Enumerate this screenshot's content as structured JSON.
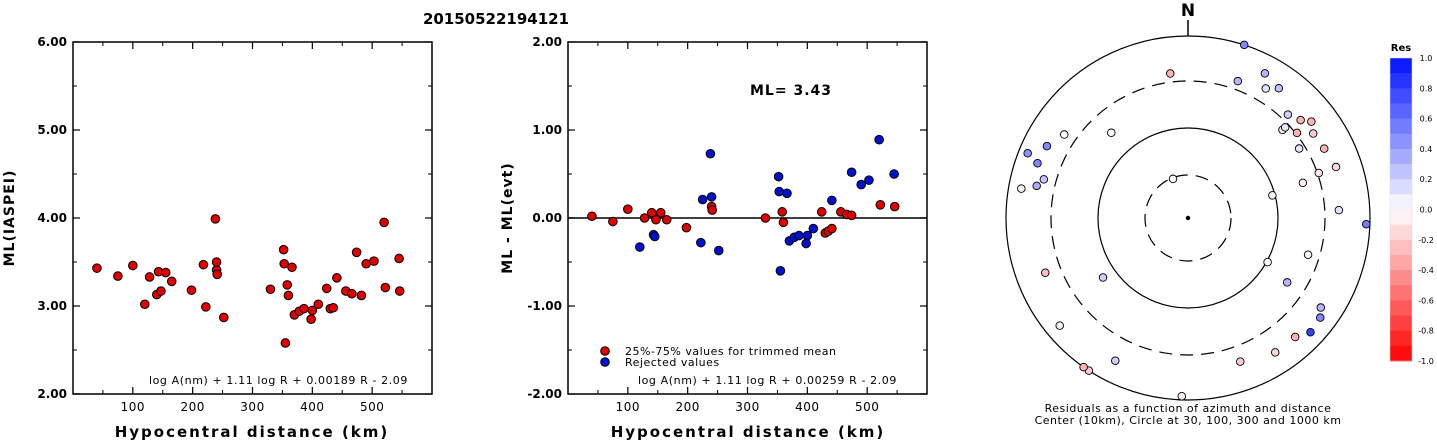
{
  "page_title": "20150522194121",
  "chart_data": [
    {
      "type": "scatter",
      "id": "ml-vs-distance",
      "xlabel": "Hypocentral distance (km)",
      "ylabel": "ML(IASPEI)",
      "xlim": [
        0,
        600
      ],
      "ylim": [
        2.0,
        6.0
      ],
      "xticks": [
        "100",
        "200",
        "300",
        "400",
        "500"
      ],
      "xtick_values": [
        100,
        200,
        300,
        400,
        500
      ],
      "yticks": [
        "2.00",
        "3.00",
        "4.00",
        "5.00",
        "6.00"
      ],
      "ytick_values": [
        2.0,
        3.0,
        4.0,
        5.0,
        6.0
      ],
      "formula": "log A(nm) + 1.11 log R + 0.00189 R - 2.09",
      "marker_color": "#e00000",
      "points": [
        [
          40,
          3.43
        ],
        [
          75,
          3.34
        ],
        [
          100,
          3.46
        ],
        [
          120,
          3.02
        ],
        [
          128,
          3.33
        ],
        [
          140,
          3.13
        ],
        [
          143,
          3.39
        ],
        [
          147,
          3.17
        ],
        [
          155,
          3.38
        ],
        [
          165,
          3.28
        ],
        [
          198,
          3.18
        ],
        [
          218,
          3.47
        ],
        [
          222,
          2.99
        ],
        [
          238,
          3.99
        ],
        [
          240,
          3.41
        ],
        [
          240,
          3.5
        ],
        [
          241,
          3.36
        ],
        [
          252,
          2.87
        ],
        [
          330,
          3.19
        ],
        [
          352,
          3.64
        ],
        [
          353,
          3.48
        ],
        [
          355,
          2.58
        ],
        [
          358,
          3.24
        ],
        [
          360,
          3.12
        ],
        [
          366,
          3.44
        ],
        [
          370,
          2.9
        ],
        [
          378,
          2.94
        ],
        [
          386,
          2.97
        ],
        [
          398,
          2.85
        ],
        [
          400,
          2.95
        ],
        [
          410,
          3.02
        ],
        [
          424,
          3.2
        ],
        [
          430,
          2.97
        ],
        [
          435,
          2.98
        ],
        [
          441,
          3.32
        ],
        [
          456,
          3.17
        ],
        [
          466,
          3.14
        ],
        [
          474,
          3.61
        ],
        [
          482,
          3.12
        ],
        [
          490,
          3.48
        ],
        [
          503,
          3.51
        ],
        [
          520,
          3.95
        ],
        [
          522,
          3.21
        ],
        [
          545,
          3.54
        ],
        [
          546,
          3.17
        ]
      ]
    },
    {
      "type": "scatter",
      "id": "residual-vs-distance",
      "xlabel": "Hypocentral distance (km)",
      "ylabel": "ML - ML(evt)",
      "xlim": [
        0,
        600
      ],
      "ylim": [
        -2.0,
        2.0
      ],
      "xticks": [
        "100",
        "200",
        "300",
        "400",
        "500"
      ],
      "xtick_values": [
        100,
        200,
        300,
        400,
        500
      ],
      "yticks": [
        "-2.00",
        "-1.00",
        "0.00",
        "1.00",
        "2.00"
      ],
      "ytick_values": [
        -2.0,
        -1.0,
        0.0,
        1.0,
        2.0
      ],
      "annotation": "ML= 3.43",
      "formula": "log A(nm) + 1.11 log R + 0.00259 R - 2.09",
      "legend": [
        {
          "label": "25%-75% values for trimmed mean",
          "color": "#e00000"
        },
        {
          "label": "Rejected values",
          "color": "#0010d0"
        }
      ],
      "series": [
        {
          "legend_index": 0,
          "color": "#e00000",
          "points": [
            [
              40,
              0.02
            ],
            [
              75,
              -0.04
            ],
            [
              100,
              0.1
            ],
            [
              128,
              0.0
            ],
            [
              140,
              0.06
            ],
            [
              147,
              -0.02
            ],
            [
              155,
              0.06
            ],
            [
              165,
              -0.02
            ],
            [
              198,
              -0.11
            ],
            [
              240,
              0.13
            ],
            [
              241,
              0.09
            ],
            [
              330,
              0.0
            ],
            [
              358,
              0.07
            ],
            [
              360,
              -0.05
            ],
            [
              424,
              0.07
            ],
            [
              430,
              -0.17
            ],
            [
              435,
              -0.15
            ],
            [
              441,
              -0.12
            ],
            [
              456,
              0.07
            ],
            [
              466,
              0.04
            ],
            [
              474,
              0.03
            ],
            [
              522,
              0.15
            ],
            [
              546,
              0.13
            ]
          ]
        },
        {
          "legend_index": 1,
          "color": "#0010d0",
          "points": [
            [
              120,
              -0.33
            ],
            [
              143,
              -0.19
            ],
            [
              145,
              -0.21
            ],
            [
              222,
              -0.28
            ],
            [
              225,
              0.21
            ],
            [
              238,
              0.73
            ],
            [
              240,
              0.24
            ],
            [
              252,
              -0.37
            ],
            [
              352,
              0.47
            ],
            [
              353,
              0.3
            ],
            [
              355,
              -0.6
            ],
            [
              366,
              0.28
            ],
            [
              370,
              -0.26
            ],
            [
              378,
              -0.22
            ],
            [
              386,
              -0.2
            ],
            [
              398,
              -0.29
            ],
            [
              400,
              -0.2
            ],
            [
              410,
              -0.12
            ],
            [
              441,
              0.2
            ],
            [
              474,
              0.52
            ],
            [
              490,
              0.38
            ],
            [
              503,
              0.43
            ],
            [
              520,
              0.89
            ],
            [
              545,
              0.5
            ]
          ]
        }
      ]
    },
    {
      "type": "scatter",
      "id": "azimuth-residual-map",
      "north_label": "N",
      "caption_line1": "Residuals as a function of azimuth and distance",
      "caption_line2": "Center (10km), Circle at 30, 100, 300 and 1000 km",
      "rings_km": [
        10,
        30,
        100,
        300,
        1000
      ],
      "ring_styles": [
        "center",
        "dashed",
        "solid",
        "dashed",
        "solid"
      ],
      "colorbar_title": "Res",
      "colorbar_range": [
        -1.0,
        1.0
      ],
      "colorbar_ticks": [
        "1.0",
        "0.8",
        "0.6",
        "0.4",
        "0.2",
        "0.0",
        "-0.2",
        "-0.4",
        "-0.6",
        "-0.8",
        "-1.0"
      ],
      "colorbar_tick_values": [
        1.0,
        0.8,
        0.6,
        0.4,
        0.2,
        0.0,
        -0.2,
        -0.4,
        -0.6,
        -0.8,
        -1.0
      ],
      "positive_color": "#0010ff",
      "negative_color": "#ff0000",
      "stations": [
        {
          "az": 18,
          "dist": 1.0,
          "res": 0.5
        },
        {
          "az": 20,
          "dist": 0.8,
          "res": 0.3
        },
        {
          "az": 28,
          "dist": 0.9,
          "res": 0.3
        },
        {
          "az": 31,
          "dist": 0.83,
          "res": 0.12
        },
        {
          "az": 35,
          "dist": 0.87,
          "res": 0.25
        },
        {
          "az": 44,
          "dist": 0.79,
          "res": 0.2
        },
        {
          "az": 47,
          "dist": 0.71,
          "res": -0.05
        },
        {
          "az": 47,
          "dist": 0.73,
          "res": 0.1
        },
        {
          "az": 49,
          "dist": 0.82,
          "res": -0.3
        },
        {
          "az": 52,
          "dist": 0.76,
          "res": -0.3
        },
        {
          "az": 52,
          "dist": 0.86,
          "res": -0.3
        },
        {
          "az": 58,
          "dist": 0.72,
          "res": 0.1
        },
        {
          "az": 56,
          "dist": 0.83,
          "res": -0.2
        },
        {
          "az": 63,
          "dist": 0.84,
          "res": -0.3
        },
        {
          "az": 71,
          "dist": 0.76,
          "res": -0.1
        },
        {
          "az": 71,
          "dist": 0.86,
          "res": -0.15
        },
        {
          "az": 73,
          "dist": 0.66,
          "res": -0.08
        },
        {
          "az": 75,
          "dist": 0.48,
          "res": -0.04
        },
        {
          "az": 87,
          "dist": 0.83,
          "res": 0.12
        },
        {
          "az": 92,
          "dist": 0.98,
          "res": 0.55
        },
        {
          "az": 107,
          "dist": 0.69,
          "res": -0.05
        },
        {
          "az": 119,
          "dist": 0.5,
          "res": 0.0
        },
        {
          "az": 123,
          "dist": 0.65,
          "res": 0.3
        },
        {
          "az": 124,
          "dist": 0.88,
          "res": 0.3
        },
        {
          "az": 127,
          "dist": 0.91,
          "res": 0.5
        },
        {
          "az": 133,
          "dist": 0.92,
          "res": 0.8
        },
        {
          "az": 138,
          "dist": 0.88,
          "res": -0.3
        },
        {
          "az": 147,
          "dist": 0.88,
          "res": -0.15
        },
        {
          "az": 160,
          "dist": 0.84,
          "res": -0.2
        },
        {
          "az": 182,
          "dist": 0.98,
          "res": -0.05
        },
        {
          "az": 207,
          "dist": 0.88,
          "res": 0.2
        },
        {
          "az": 213,
          "dist": 1.0,
          "res": -0.2
        },
        {
          "az": 215,
          "dist": 1.0,
          "res": -0.3
        },
        {
          "az": 230,
          "dist": 0.92,
          "res": 0.05
        },
        {
          "az": 235,
          "dist": 0.57,
          "res": 0.2
        },
        {
          "az": 249,
          "dist": 0.84,
          "res": -0.25
        },
        {
          "az": 280,
          "dist": 0.93,
          "res": -0.05
        },
        {
          "az": 282,
          "dist": 0.85,
          "res": 0.35
        },
        {
          "az": 285,
          "dist": 0.82,
          "res": 0.25
        },
        {
          "az": 290,
          "dist": 0.88,
          "res": 0.5
        },
        {
          "az": 292,
          "dist": 0.95,
          "res": 0.45
        },
        {
          "az": 297,
          "dist": 0.87,
          "res": 0.5
        },
        {
          "az": 304,
          "dist": 0.82,
          "res": 0.0
        },
        {
          "az": 318,
          "dist": 0.63,
          "res": 0.0
        },
        {
          "az": 339,
          "dist": 0.23,
          "res": 0.0
        },
        {
          "az": 353,
          "dist": 0.8,
          "res": -0.3
        }
      ]
    }
  ]
}
